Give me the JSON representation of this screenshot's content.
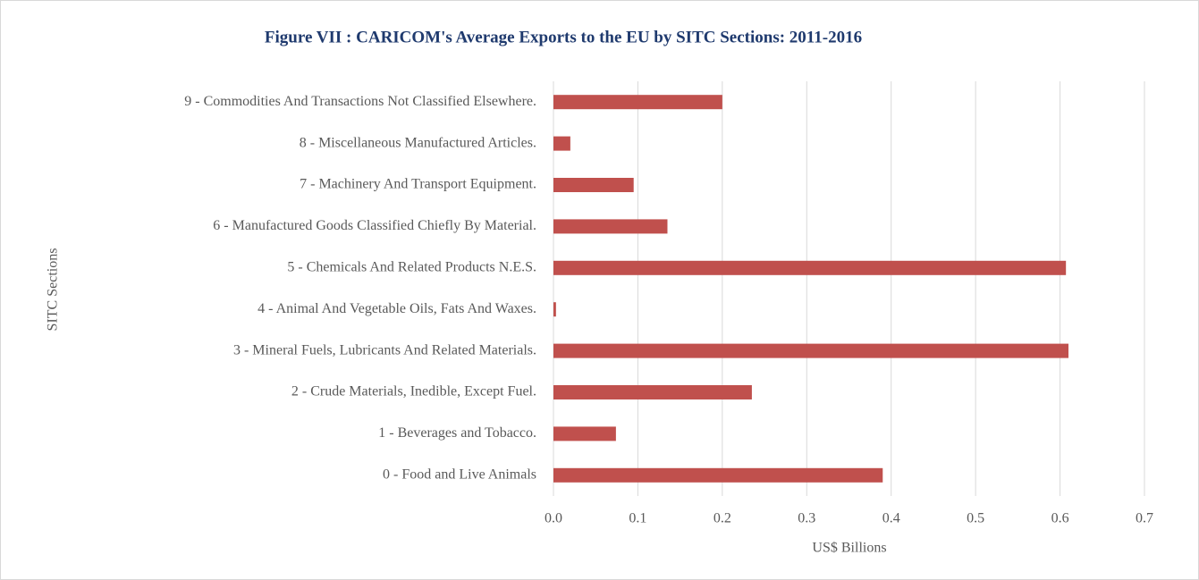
{
  "chart_data": {
    "type": "bar",
    "orientation": "horizontal",
    "title": "Figure VII : CARICOM's Average Exports to the EU by SITC Sections: 2011-2016",
    "x_label": "US$ Billions",
    "y_label": "SITC Sections",
    "categories": [
      "0 - Food and Live Animals",
      "1 - Beverages and Tobacco.",
      "2 - Crude Materials, Inedible, Except Fuel.",
      "3 - Mineral Fuels, Lubricants And Related Materials.",
      "4 - Animal And Vegetable Oils, Fats And Waxes.",
      "5 - Chemicals And Related Products N.E.S.",
      "6 - Manufactured Goods Classified Chiefly By Material.",
      "7 - Machinery And Transport Equipment.",
      "8 - Miscellaneous Manufactured Articles.",
      "9 - Commodities And Transactions Not Classified Elsewhere."
    ],
    "values": [
      0.39,
      0.074,
      0.235,
      0.61,
      0.003,
      0.607,
      0.135,
      0.095,
      0.02,
      0.2
    ],
    "color": "#c0504d",
    "xlim": [
      0,
      0.7
    ],
    "xticks": [
      {
        "value": 0,
        "label": "0.0"
      },
      0.1,
      0.2,
      0.3,
      0.4,
      0.5,
      0.6,
      0.7
    ],
    "grid": true
  }
}
